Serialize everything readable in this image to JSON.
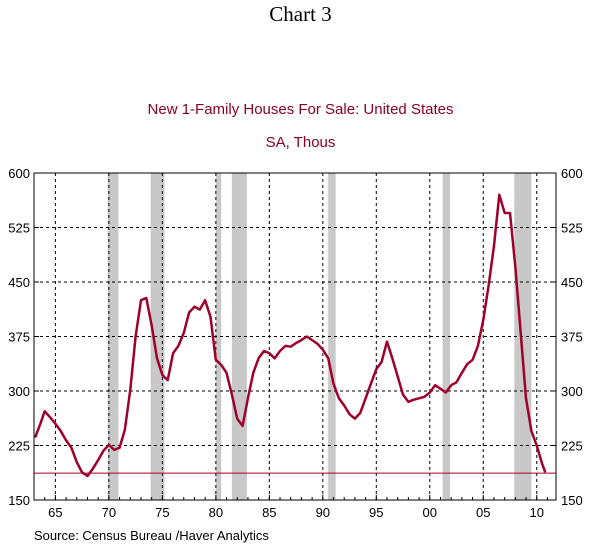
{
  "page": {
    "heading": "Chart 3",
    "source": "Source:  Census Bureau /Haver Analytics"
  },
  "colors": {
    "series": "#a0002c",
    "recession": "#c8c8c8",
    "grid": "#000000",
    "title": "#8b0026"
  },
  "chart_data": {
    "type": "line",
    "title": "New 1-Family Houses For Sale: United States",
    "subtitle": "SA, Thous",
    "xlabel": "",
    "ylabel": "",
    "xlim": [
      1963.0,
      2011.8
    ],
    "ylim": [
      150,
      600
    ],
    "y_ticks": [
      600,
      525,
      450,
      375,
      300,
      225,
      150
    ],
    "x_ticks": [
      {
        "label": "65",
        "value": 1965
      },
      {
        "label": "70",
        "value": 1970
      },
      {
        "label": "75",
        "value": 1975
      },
      {
        "label": "80",
        "value": 1980
      },
      {
        "label": "85",
        "value": 1985
      },
      {
        "label": "90",
        "value": 1990
      },
      {
        "label": "95",
        "value": 1995
      },
      {
        "label": "00",
        "value": 2000
      },
      {
        "label": "05",
        "value": 2005
      },
      {
        "label": "10",
        "value": 2010
      }
    ],
    "grid": true,
    "recessions": [
      [
        1969.9,
        1970.9
      ],
      [
        1973.9,
        1975.2
      ],
      [
        1980.0,
        1980.5
      ],
      [
        1981.5,
        1982.9
      ],
      [
        1990.5,
        1991.2
      ],
      [
        2001.2,
        2001.9
      ],
      [
        2007.9,
        2009.5
      ]
    ],
    "reference_line": 187,
    "series": [
      {
        "name": "New 1-Family Houses For Sale",
        "x": [
          1963.1,
          1963.6,
          1964.0,
          1964.5,
          1965.0,
          1965.5,
          1966.0,
          1966.5,
          1967.0,
          1967.5,
          1968.0,
          1968.5,
          1969.0,
          1969.5,
          1970.0,
          1970.5,
          1971.0,
          1971.5,
          1972.0,
          1972.5,
          1973.0,
          1973.5,
          1974.0,
          1974.5,
          1975.0,
          1975.5,
          1976.0,
          1976.5,
          1977.0,
          1977.5,
          1978.0,
          1978.5,
          1979.0,
          1979.5,
          1980.0,
          1980.5,
          1981.0,
          1981.5,
          1982.0,
          1982.5,
          1983.0,
          1983.5,
          1984.0,
          1984.5,
          1985.0,
          1985.5,
          1986.0,
          1986.5,
          1987.0,
          1987.5,
          1988.0,
          1988.5,
          1989.0,
          1989.5,
          1990.0,
          1990.5,
          1991.0,
          1991.5,
          1992.0,
          1992.5,
          1993.0,
          1993.5,
          1994.0,
          1994.5,
          1995.0,
          1995.5,
          1996.0,
          1996.5,
          1997.0,
          1997.5,
          1998.0,
          1998.5,
          1999.0,
          1999.5,
          2000.0,
          2000.5,
          2001.0,
          2001.5,
          2002.0,
          2002.5,
          2003.0,
          2003.5,
          2004.0,
          2004.5,
          2005.0,
          2005.5,
          2006.0,
          2006.5,
          2007.0,
          2007.5,
          2008.0,
          2008.5,
          2009.0,
          2009.5,
          2010.0,
          2010.5,
          2010.8
        ],
        "values": [
          236,
          255,
          272,
          264,
          255,
          245,
          232,
          222,
          202,
          188,
          183,
          193,
          205,
          218,
          226,
          219,
          222,
          247,
          302,
          375,
          425,
          428,
          390,
          345,
          322,
          315,
          352,
          362,
          380,
          408,
          416,
          412,
          425,
          402,
          343,
          336,
          325,
          295,
          262,
          252,
          290,
          325,
          345,
          355,
          352,
          345,
          355,
          362,
          361,
          366,
          370,
          375,
          370,
          365,
          357,
          345,
          310,
          290,
          280,
          268,
          262,
          270,
          290,
          310,
          330,
          340,
          368,
          345,
          320,
          295,
          285,
          288,
          290,
          292,
          298,
          308,
          303,
          298,
          308,
          312,
          325,
          337,
          343,
          362,
          398,
          445,
          500,
          570,
          545,
          545,
          470,
          380,
          290,
          245,
          225,
          200,
          188
        ]
      }
    ]
  }
}
